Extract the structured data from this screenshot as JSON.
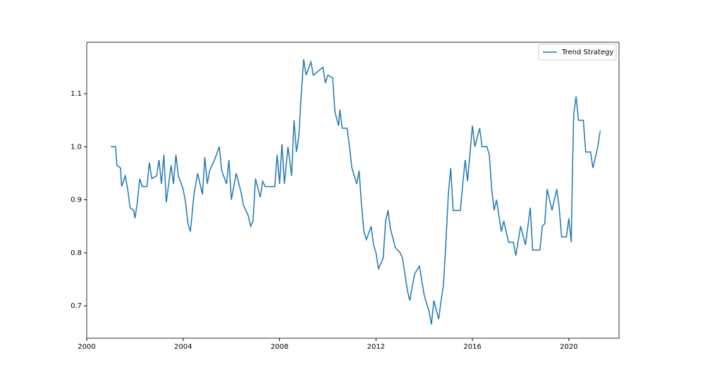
{
  "chart_data": {
    "type": "line",
    "x": [
      2001.0,
      2001.2,
      2001.25,
      2001.4,
      2001.45,
      2001.6,
      2001.7,
      2001.8,
      2001.95,
      2002.0,
      2002.1,
      2002.2,
      2002.3,
      2002.5,
      2002.6,
      2002.7,
      2002.9,
      2003.0,
      2003.1,
      2003.2,
      2003.3,
      2003.5,
      2003.6,
      2003.7,
      2003.8,
      2004.0,
      2004.1,
      2004.2,
      2004.3,
      2004.45,
      2004.6,
      2004.8,
      2004.9,
      2005.0,
      2005.1,
      2005.3,
      2005.5,
      2005.6,
      2005.8,
      2005.9,
      2006.0,
      2006.2,
      2006.4,
      2006.5,
      2006.7,
      2006.8,
      2006.9,
      2007.0,
      2007.2,
      2007.3,
      2007.4,
      2007.8,
      2007.9,
      2008.0,
      2008.1,
      2008.2,
      2008.35,
      2008.5,
      2008.6,
      2008.7,
      2008.8,
      2008.9,
      2009.0,
      2009.1,
      2009.3,
      2009.4,
      2009.8,
      2009.9,
      2010.0,
      2010.2,
      2010.3,
      2010.45,
      2010.5,
      2010.6,
      2010.8,
      2010.9,
      2011.0,
      2011.2,
      2011.3,
      2011.4,
      2011.5,
      2011.6,
      2011.8,
      2011.9,
      2012.0,
      2012.1,
      2012.3,
      2012.4,
      2012.5,
      2012.6,
      2012.8,
      2013.0,
      2013.1,
      2013.2,
      2013.3,
      2013.4,
      2013.6,
      2013.8,
      2014.0,
      2014.2,
      2014.3,
      2014.4,
      2014.6,
      2014.7,
      2014.8,
      2014.9,
      2015.0,
      2015.1,
      2015.2,
      2015.5,
      2015.6,
      2015.7,
      2015.8,
      2016.0,
      2016.1,
      2016.3,
      2016.4,
      2016.6,
      2016.7,
      2016.8,
      2016.9,
      2017.0,
      2017.2,
      2017.3,
      2017.5,
      2017.7,
      2017.8,
      2018.0,
      2018.2,
      2018.4,
      2018.5,
      2018.8,
      2018.9,
      2019.0,
      2019.1,
      2019.3,
      2019.5,
      2019.6,
      2019.7,
      2019.9,
      2020.0,
      2020.1,
      2020.15,
      2020.2,
      2020.3,
      2020.4,
      2020.6,
      2020.7,
      2020.9,
      2021.0,
      2021.1,
      2021.2,
      2021.3
    ],
    "series": [
      {
        "name": "Trend Strategy",
        "color": "#1f77b4",
        "values": [
          1.0,
          1.0,
          0.965,
          0.96,
          0.925,
          0.945,
          0.92,
          0.885,
          0.88,
          0.865,
          0.895,
          0.94,
          0.925,
          0.925,
          0.97,
          0.94,
          0.945,
          0.975,
          0.93,
          0.985,
          0.895,
          0.965,
          0.93,
          0.985,
          0.945,
          0.92,
          0.895,
          0.855,
          0.84,
          0.91,
          0.95,
          0.91,
          0.98,
          0.93,
          0.955,
          0.975,
          1.0,
          0.955,
          0.93,
          0.975,
          0.9,
          0.95,
          0.915,
          0.89,
          0.87,
          0.85,
          0.86,
          0.94,
          0.905,
          0.935,
          0.925,
          0.925,
          0.985,
          0.93,
          1.005,
          0.93,
          1.0,
          0.945,
          1.05,
          0.99,
          1.02,
          1.1,
          1.165,
          1.135,
          1.16,
          1.135,
          1.15,
          1.12,
          1.135,
          1.13,
          1.065,
          1.04,
          1.07,
          1.035,
          1.035,
          1.0,
          0.96,
          0.93,
          0.955,
          0.89,
          0.84,
          0.825,
          0.85,
          0.815,
          0.8,
          0.77,
          0.79,
          0.86,
          0.88,
          0.845,
          0.81,
          0.8,
          0.79,
          0.76,
          0.73,
          0.71,
          0.76,
          0.775,
          0.72,
          0.69,
          0.665,
          0.71,
          0.675,
          0.71,
          0.74,
          0.82,
          0.91,
          0.96,
          0.88,
          0.88,
          0.93,
          0.975,
          0.935,
          1.04,
          1.0,
          1.035,
          1.0,
          1.0,
          0.985,
          0.92,
          0.88,
          0.9,
          0.84,
          0.86,
          0.82,
          0.82,
          0.795,
          0.85,
          0.815,
          0.885,
          0.805,
          0.805,
          0.85,
          0.855,
          0.92,
          0.88,
          0.92,
          0.885,
          0.83,
          0.83,
          0.865,
          0.82,
          0.955,
          1.06,
          1.095,
          1.05,
          1.05,
          0.99,
          0.99,
          0.96,
          0.98,
          1.0,
          1.03
        ]
      }
    ],
    "xlim": [
      2000,
      2022.08
    ],
    "xticks": [
      2000,
      2004,
      2008,
      2012,
      2016,
      2020
    ],
    "ylim": [
      0.639,
      1.197
    ],
    "yticks": [
      0.7,
      0.8,
      0.9,
      {
        "value": 1,
        "label": "1.0"
      },
      1.1
    ],
    "legend": "upper right"
  }
}
